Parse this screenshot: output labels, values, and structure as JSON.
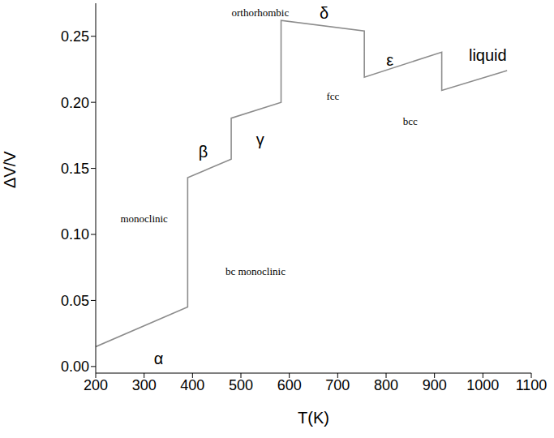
{
  "chart_data": {
    "type": "line",
    "x_label": "T(K)",
    "y_label": "ΔV/V",
    "xlim": [
      200,
      1100
    ],
    "xticks": [
      200,
      300,
      400,
      500,
      600,
      700,
      800,
      900,
      1000,
      1100
    ],
    "ylim": [
      -0.005,
      0.275
    ],
    "yticks": [
      {
        "value": 0,
        "label": "0.00"
      },
      {
        "value": 0.05,
        "label": "0.05"
      },
      {
        "value": 0.1,
        "label": "0.10"
      },
      {
        "value": 0.15,
        "label": "0.15"
      },
      {
        "value": 0.2,
        "label": "0.20"
      },
      {
        "value": 0.25,
        "label": "0.25"
      }
    ],
    "grid": false,
    "x": [
      200,
      390,
      390,
      480,
      480,
      583,
      583,
      755,
      755,
      915,
      915,
      1050
    ],
    "series": [
      {
        "name": "ΔV/V",
        "color": "#8c8c8c",
        "values": [
          0.015,
          0.045,
          0.143,
          0.157,
          0.188,
          0.2,
          0.262,
          0.254,
          0.219,
          0.238,
          0.209,
          0.224
        ]
      }
    ],
    "annotations": [
      "α",
      "β",
      "γ",
      "δ",
      "ε",
      "liquid",
      "monoclinic",
      "bc monoclinic",
      "orthorhombic",
      "fcc",
      "bcc"
    ]
  }
}
